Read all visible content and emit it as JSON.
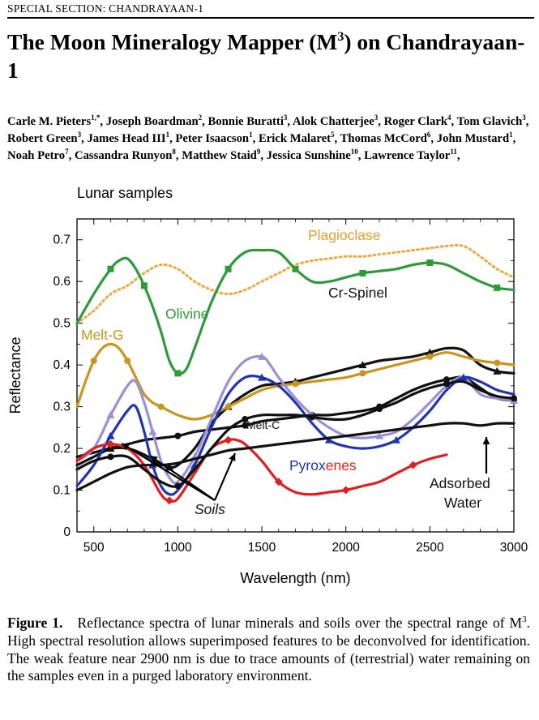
{
  "header": {
    "section": "SPECIAL SECTION: CHANDRAYAAN-1"
  },
  "article": {
    "title_pre": "The Moon Mineralogy Mapper (M",
    "title_sup": "3",
    "title_post": ") on Chandrayaan-1",
    "authors": [
      {
        "name": "Carle M. Pieters",
        "aff": "1,*",
        "sep": ", "
      },
      {
        "name": "Joseph Boardman",
        "aff": "2",
        "sep": ", "
      },
      {
        "name": "Bonnie Buratti",
        "aff": "3",
        "sep": ", "
      },
      {
        "name": "Alok Chatterjee",
        "aff": "3",
        "sep": ", "
      },
      {
        "name": "Roger Clark",
        "aff": "4",
        "sep": ", "
      },
      {
        "name": "Tom Glavich",
        "aff": "3",
        "sep": ", "
      },
      {
        "name": "Robert Green",
        "aff": "3",
        "sep": ", "
      },
      {
        "name": "James Head III",
        "aff": "1",
        "sep": ", "
      },
      {
        "name": "Peter Isaacson",
        "aff": "1",
        "sep": ", "
      },
      {
        "name": "Erick Malaret",
        "aff": "5",
        "sep": ", "
      },
      {
        "name": "Thomas McCord",
        "aff": "6",
        "sep": ", "
      },
      {
        "name": "John Mustard",
        "aff": "1",
        "sep": ", "
      },
      {
        "name": "Noah Petro",
        "aff": "7",
        "sep": ", "
      },
      {
        "name": "Cassandra Runyon",
        "aff": "8",
        "sep": ", "
      },
      {
        "name": "Matthew Staid",
        "aff": "9",
        "sep": ", "
      },
      {
        "name": "Jessica Sunshine",
        "aff": "10",
        "sep": ", "
      },
      {
        "name": "Lawrence Taylor",
        "aff": "11",
        "sep": ","
      }
    ]
  },
  "caption": {
    "label": "Figure 1.",
    "text_1": "Reflectance spectra of lunar minerals and soils over the spectral range of M",
    "sup": "3",
    "text_2": ". High spectral resolution allows superimposed features to be deconvolved for identification. The weak feature near 2900 nm is due to trace amounts of (terrestrial) water remaining on the samples even in a purged laboratory environment."
  },
  "chart_data": {
    "type": "line",
    "title": "Lunar samples",
    "xlabel": "Wavelength (nm)",
    "ylabel": "Reflectance",
    "xlim": [
      400,
      3000
    ],
    "ylim": [
      0,
      0.75
    ],
    "xticks": [
      500,
      1000,
      1500,
      2000,
      2500,
      3000
    ],
    "yticks": [
      0,
      0.1,
      0.2,
      0.3,
      0.4,
      0.5,
      0.6,
      0.7
    ],
    "grid": false,
    "annotations": [
      {
        "text": "Plagioclase",
        "color": "#e3a030"
      },
      {
        "text": "Olivine",
        "color": "#2e9a3c"
      },
      {
        "text": "Cr-Spinel",
        "color": "#111111"
      },
      {
        "text": "Melt-G",
        "color": "#c8961e"
      },
      {
        "text": "Melt-C",
        "color": "#111111"
      },
      {
        "text": "Pyrox",
        "color": "#2035b0"
      },
      {
        "text": "enes",
        "color": "#e02020"
      },
      {
        "text": "Soils",
        "color": "#111111"
      },
      {
        "text": "Adsorbed",
        "color": "#111111"
      },
      {
        "text": "Water",
        "color": "#111111"
      }
    ],
    "series": [
      {
        "key": "plagioclase",
        "color": "#f0a840",
        "dash": true,
        "marker": "none",
        "x": [
          400,
          500,
          600,
          700,
          800,
          900,
          1000,
          1100,
          1200,
          1300,
          1400,
          1500,
          1600,
          1700,
          1800,
          1900,
          2000,
          2100,
          2200,
          2300,
          2400,
          2500,
          2600,
          2700,
          2800,
          2900,
          3000
        ],
        "y": [
          0.5,
          0.53,
          0.57,
          0.59,
          0.62,
          0.64,
          0.63,
          0.6,
          0.58,
          0.57,
          0.58,
          0.6,
          0.62,
          0.64,
          0.65,
          0.655,
          0.66,
          0.66,
          0.665,
          0.67,
          0.675,
          0.68,
          0.685,
          0.685,
          0.66,
          0.63,
          0.61
        ]
      },
      {
        "key": "olivine",
        "color": "#2e9a3c",
        "dash": false,
        "marker": "square",
        "x": [
          400,
          500,
          600,
          650,
          700,
          750,
          800,
          850,
          900,
          950,
          1000,
          1050,
          1100,
          1200,
          1300,
          1400,
          1500,
          1600,
          1700,
          1800,
          1900,
          2000,
          2100,
          2200,
          2300,
          2400,
          2500,
          2600,
          2700,
          2800,
          2900,
          3000
        ],
        "y": [
          0.5,
          0.57,
          0.63,
          0.65,
          0.655,
          0.63,
          0.59,
          0.54,
          0.48,
          0.41,
          0.38,
          0.39,
          0.44,
          0.55,
          0.63,
          0.67,
          0.675,
          0.67,
          0.63,
          0.6,
          0.6,
          0.61,
          0.62,
          0.625,
          0.63,
          0.64,
          0.645,
          0.64,
          0.62,
          0.6,
          0.585,
          0.58
        ]
      },
      {
        "key": "cr-spinel",
        "color": "#111111",
        "dash": false,
        "marker": "triangle",
        "x": [
          400,
          500,
          600,
          700,
          800,
          900,
          950,
          1000,
          1100,
          1200,
          1300,
          1400,
          1500,
          1600,
          1700,
          1800,
          1900,
          2000,
          2100,
          2200,
          2300,
          2400,
          2500,
          2600,
          2700,
          2800,
          2900,
          3000
        ],
        "y": [
          0.18,
          0.19,
          0.2,
          0.2,
          0.185,
          0.16,
          0.155,
          0.16,
          0.2,
          0.26,
          0.3,
          0.33,
          0.35,
          0.355,
          0.36,
          0.37,
          0.38,
          0.39,
          0.4,
          0.41,
          0.415,
          0.42,
          0.43,
          0.44,
          0.435,
          0.4,
          0.385,
          0.38
        ]
      },
      {
        "key": "melt-g",
        "color": "#c8961e",
        "dash": false,
        "marker": "circle",
        "x": [
          400,
          450,
          500,
          550,
          600,
          650,
          700,
          750,
          800,
          850,
          900,
          1000,
          1100,
          1200,
          1300,
          1400,
          1500,
          1600,
          1700,
          1800,
          1900,
          2000,
          2100,
          2200,
          2300,
          2400,
          2500,
          2600,
          2700,
          2800,
          2900,
          3000
        ],
        "y": [
          0.3,
          0.36,
          0.41,
          0.44,
          0.45,
          0.44,
          0.41,
          0.37,
          0.33,
          0.31,
          0.3,
          0.28,
          0.27,
          0.28,
          0.3,
          0.32,
          0.34,
          0.35,
          0.355,
          0.36,
          0.365,
          0.37,
          0.38,
          0.39,
          0.4,
          0.41,
          0.42,
          0.43,
          0.42,
          0.41,
          0.405,
          0.4
        ]
      },
      {
        "key": "melt-c",
        "color": "#111111",
        "dash": false,
        "marker": "circle",
        "x": [
          400,
          500,
          600,
          700,
          800,
          900,
          1000,
          1100,
          1200,
          1300,
          1400,
          1500,
          1600,
          1700,
          1800,
          1900,
          2000,
          2100,
          2200,
          2300,
          2400,
          2500,
          2600,
          2700,
          2800,
          2900,
          3000
        ],
        "y": [
          0.16,
          0.18,
          0.2,
          0.21,
          0.22,
          0.225,
          0.23,
          0.24,
          0.245,
          0.25,
          0.255,
          0.265,
          0.27,
          0.275,
          0.28,
          0.28,
          0.285,
          0.29,
          0.3,
          0.32,
          0.34,
          0.355,
          0.365,
          0.37,
          0.345,
          0.32,
          0.315
        ]
      },
      {
        "key": "pyroxene-light",
        "color": "#9b8fd6",
        "dash": false,
        "marker": "triangle",
        "x": [
          400,
          500,
          600,
          700,
          750,
          800,
          850,
          900,
          950,
          1000,
          1100,
          1200,
          1300,
          1400,
          1500,
          1550,
          1600,
          1700,
          1800,
          1900,
          2000,
          2100,
          2200,
          2300,
          2400,
          2500,
          2600,
          2700,
          2800,
          2900,
          3000
        ],
        "y": [
          0.17,
          0.2,
          0.28,
          0.35,
          0.36,
          0.31,
          0.24,
          0.17,
          0.13,
          0.12,
          0.18,
          0.27,
          0.36,
          0.41,
          0.42,
          0.4,
          0.37,
          0.32,
          0.28,
          0.25,
          0.23,
          0.225,
          0.23,
          0.24,
          0.27,
          0.31,
          0.35,
          0.37,
          0.33,
          0.32,
          0.315
        ]
      },
      {
        "key": "pyroxene-dark",
        "color": "#2035b0",
        "dash": false,
        "marker": "triangle",
        "x": [
          400,
          500,
          600,
          700,
          750,
          800,
          850,
          900,
          950,
          1000,
          1100,
          1200,
          1300,
          1400,
          1500,
          1600,
          1700,
          1800,
          1900,
          2000,
          2100,
          2200,
          2300,
          2400,
          2500,
          2600,
          2700,
          2800,
          2900,
          3000
        ],
        "y": [
          0.11,
          0.16,
          0.23,
          0.29,
          0.3,
          0.24,
          0.16,
          0.11,
          0.09,
          0.1,
          0.16,
          0.25,
          0.33,
          0.37,
          0.37,
          0.35,
          0.31,
          0.26,
          0.22,
          0.205,
          0.2,
          0.205,
          0.22,
          0.25,
          0.29,
          0.34,
          0.37,
          0.36,
          0.34,
          0.33
        ]
      },
      {
        "key": "pyroxene-red",
        "color": "#e02020",
        "dash": false,
        "marker": "diamond",
        "x": [
          400,
          500,
          600,
          700,
          800,
          900,
          950,
          1000,
          1100,
          1200,
          1300,
          1350,
          1400,
          1500,
          1600,
          1700,
          1800,
          1900,
          2000,
          2100,
          2200,
          2300,
          2400,
          2500,
          2600
        ],
        "y": [
          0.17,
          0.2,
          0.21,
          0.2,
          0.16,
          0.09,
          0.075,
          0.08,
          0.14,
          0.2,
          0.22,
          0.22,
          0.21,
          0.17,
          0.12,
          0.095,
          0.09,
          0.095,
          0.1,
          0.11,
          0.12,
          0.14,
          0.16,
          0.175,
          0.185
        ]
      },
      {
        "key": "soil-1",
        "color": "#111111",
        "dash": false,
        "marker": "none",
        "x": [
          400,
          500,
          600,
          700,
          800,
          900,
          1000,
          1100,
          1200,
          1300,
          1400,
          1500,
          1600,
          1700,
          1800,
          1900,
          2000,
          2100,
          2200,
          2300,
          2400,
          2500,
          2600,
          2700,
          2800,
          2900,
          3000
        ],
        "y": [
          0.1,
          0.12,
          0.14,
          0.155,
          0.16,
          0.16,
          0.165,
          0.175,
          0.185,
          0.195,
          0.2,
          0.205,
          0.21,
          0.215,
          0.22,
          0.225,
          0.23,
          0.235,
          0.24,
          0.245,
          0.25,
          0.255,
          0.26,
          0.26,
          0.255,
          0.26,
          0.26
        ]
      },
      {
        "key": "soil-2",
        "color": "#111111",
        "dash": false,
        "marker": "circle",
        "x": [
          400,
          500,
          600,
          700,
          800,
          900,
          1000,
          1100,
          1200,
          1300,
          1400,
          1500,
          1600,
          1700,
          1800,
          1900,
          2000,
          2100,
          2200,
          2300,
          2400,
          2500,
          2600,
          2700,
          2800,
          2900,
          3000
        ],
        "y": [
          0.15,
          0.17,
          0.18,
          0.18,
          0.15,
          0.12,
          0.11,
          0.15,
          0.2,
          0.245,
          0.27,
          0.28,
          0.28,
          0.28,
          0.275,
          0.27,
          0.27,
          0.28,
          0.295,
          0.31,
          0.33,
          0.345,
          0.355,
          0.36,
          0.34,
          0.325,
          0.32
        ]
      }
    ]
  }
}
